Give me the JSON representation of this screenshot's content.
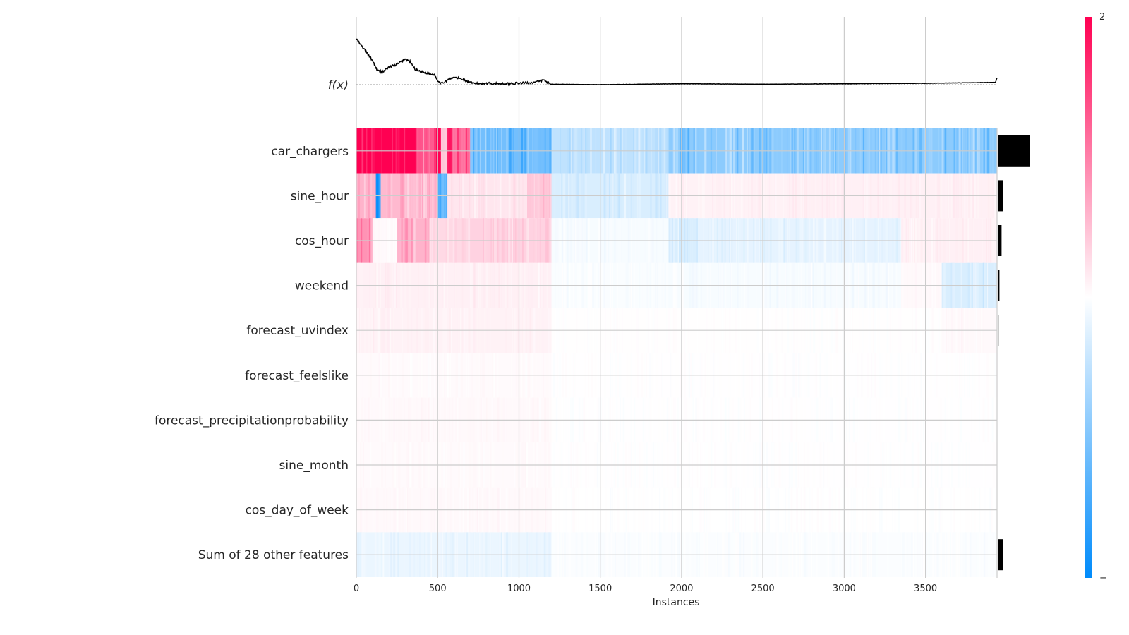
{
  "chart_data": {
    "type": "heatmap",
    "title": "",
    "xlabel": "Instances",
    "ylabel": "",
    "output_label": "f(x)",
    "xlim": [
      0,
      3940
    ],
    "xticks": [
      0,
      500,
      1000,
      1500,
      2000,
      2500,
      3000,
      3500
    ],
    "grid": true,
    "colorbar": {
      "top_label": "2",
      "bottom_label": "−",
      "min": -1,
      "max": 2,
      "low_color": "#008bfb",
      "mid_color": "#ffffff",
      "high_color": "#ff0052"
    },
    "features": [
      {
        "name": "car_chargers",
        "importance": 0.75,
        "segments": [
          [
            0,
            370,
            2.0
          ],
          [
            370,
            480,
            1.3
          ],
          [
            480,
            520,
            2.0
          ],
          [
            520,
            560,
            0.4
          ],
          [
            560,
            600,
            1.8
          ],
          [
            600,
            700,
            1.2
          ],
          [
            700,
            1200,
            -0.55
          ],
          [
            1200,
            1920,
            -0.25
          ],
          [
            1920,
            3940,
            -0.45
          ]
        ]
      },
      {
        "name": "sine_hour",
        "importance": 0.12,
        "segments": [
          [
            0,
            120,
            0.6
          ],
          [
            120,
            150,
            -0.9
          ],
          [
            150,
            500,
            0.55
          ],
          [
            500,
            560,
            -0.7
          ],
          [
            560,
            1050,
            0.2
          ],
          [
            1050,
            1200,
            0.45
          ],
          [
            1200,
            1920,
            -0.15
          ],
          [
            1920,
            2650,
            0.1
          ],
          [
            2650,
            3940,
            0.12
          ]
        ]
      },
      {
        "name": "cos_hour",
        "importance": 0.09,
        "segments": [
          [
            0,
            100,
            0.85
          ],
          [
            100,
            250,
            0.05
          ],
          [
            250,
            450,
            0.6
          ],
          [
            450,
            700,
            0.3
          ],
          [
            700,
            1200,
            0.35
          ],
          [
            1200,
            1920,
            -0.03
          ],
          [
            1920,
            2100,
            -0.15
          ],
          [
            2100,
            3350,
            -0.1
          ],
          [
            3350,
            3940,
            0.12
          ]
        ]
      },
      {
        "name": "weekend",
        "importance": 0.04,
        "segments": [
          [
            0,
            1200,
            0.12
          ],
          [
            1200,
            1920,
            -0.02
          ],
          [
            1920,
            3350,
            -0.03
          ],
          [
            3350,
            3600,
            0.05
          ],
          [
            3600,
            3940,
            -0.15
          ]
        ]
      },
      {
        "name": "forecast_uvindex",
        "importance": 0.02,
        "segments": [
          [
            0,
            1200,
            0.1
          ],
          [
            1200,
            3600,
            0.01
          ],
          [
            3600,
            3940,
            0.05
          ]
        ]
      },
      {
        "name": "forecast_feelslike",
        "importance": 0.01,
        "segments": [
          [
            0,
            1200,
            0.04
          ],
          [
            1200,
            3940,
            0.005
          ]
        ]
      },
      {
        "name": "forecast_precipitationprobability",
        "importance": 0.01,
        "segments": [
          [
            0,
            1200,
            0.05
          ],
          [
            1200,
            3940,
            0.005
          ]
        ]
      },
      {
        "name": "sine_month",
        "importance": 0.01,
        "segments": [
          [
            0,
            1200,
            0.04
          ],
          [
            1200,
            3940,
            0.004
          ]
        ]
      },
      {
        "name": "cos_day_of_week",
        "importance": 0.01,
        "segments": [
          [
            0,
            1200,
            0.05
          ],
          [
            1200,
            3940,
            0.003
          ]
        ]
      },
      {
        "name": "Sum of 28 other features",
        "importance": 0.12,
        "segments": [
          [
            0,
            1200,
            -0.08
          ],
          [
            1200,
            3940,
            -0.015
          ]
        ]
      }
    ],
    "fx_curve": {
      "x": [
        0,
        30,
        60,
        100,
        130,
        160,
        200,
        250,
        300,
        330,
        360,
        400,
        450,
        480,
        500,
        520,
        550,
        600,
        650,
        700,
        750,
        800,
        900,
        1000,
        1100,
        1150,
        1200,
        1500,
        2000,
        2500,
        3000,
        3500,
        3930,
        3940
      ],
      "y": [
        1.0,
        0.85,
        0.72,
        0.52,
        0.3,
        0.28,
        0.38,
        0.44,
        0.56,
        0.5,
        0.34,
        0.28,
        0.24,
        0.22,
        0.1,
        0.02,
        0.08,
        0.16,
        0.12,
        0.04,
        0.02,
        0.03,
        0.02,
        0.03,
        0.05,
        0.1,
        0.01,
        0.0,
        0.02,
        0.01,
        0.02,
        0.03,
        0.05,
        0.15
      ]
    }
  }
}
